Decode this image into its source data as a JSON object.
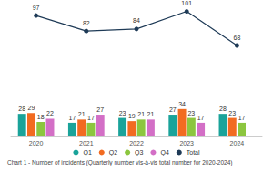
{
  "chart_data": {
    "type": "bar",
    "title": "Chart 1 - Number of incidents (Quarterly number vis-à-vis total number for 2020-2024)",
    "categories": [
      "2020",
      "2021",
      "2022",
      "2023",
      "2024"
    ],
    "series": [
      {
        "name": "Q1",
        "color": "#1aa39a",
        "values": [
          28,
          17,
          23,
          27,
          28
        ]
      },
      {
        "name": "Q2",
        "color": "#f26b21",
        "values": [
          29,
          21,
          19,
          34,
          23
        ]
      },
      {
        "name": "Q3",
        "color": "#8cc63f",
        "values": [
          18,
          17,
          21,
          23,
          17
        ]
      },
      {
        "name": "Q4",
        "color": "#d36fc6",
        "values": [
          22,
          27,
          21,
          17,
          null
        ]
      },
      {
        "name": "Total",
        "type": "line",
        "axis": "y2",
        "color": "#1f3b57",
        "marker": "circle",
        "values": [
          97,
          82,
          84,
          101,
          68
        ]
      }
    ],
    "ylim": [
      0,
      160
    ],
    "yticks": [
      0,
      160
    ],
    "y2lim": [
      -20,
      105
    ],
    "y2ticks": [
      -20,
      105
    ],
    "data_labels": true,
    "legend": "bottom",
    "tick_labels": "x",
    "grid": false
  }
}
